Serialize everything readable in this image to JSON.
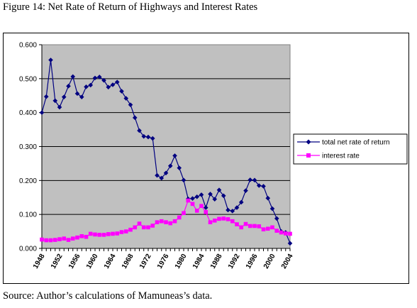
{
  "figure": {
    "title": "Figure 14:  Net Rate of Return of Highways and Interest Rates",
    "source": "Source:  Author’s calculations of Mamuneas’s data."
  },
  "chart_data": {
    "type": "line",
    "title": "",
    "xlabel": "",
    "ylabel": "",
    "ylim": [
      0,
      0.6
    ],
    "yticks": [
      "0.000",
      "0.100",
      "0.200",
      "0.300",
      "0.400",
      "0.500",
      "0.600"
    ],
    "xlim": [
      1948,
      2004
    ],
    "xticks": [
      "1948",
      "1952",
      "1956",
      "1960",
      "1964",
      "1968",
      "1972",
      "1976",
      "1980",
      "1984",
      "1988",
      "1992",
      "1996",
      "2000",
      "2004"
    ],
    "grid": true,
    "legend_position": "right",
    "x": [
      1948,
      1949,
      1950,
      1951,
      1952,
      1953,
      1954,
      1955,
      1956,
      1957,
      1958,
      1959,
      1960,
      1961,
      1962,
      1963,
      1964,
      1965,
      1966,
      1967,
      1968,
      1969,
      1970,
      1971,
      1972,
      1973,
      1974,
      1975,
      1976,
      1977,
      1978,
      1979,
      1980,
      1981,
      1982,
      1983,
      1984,
      1985,
      1986,
      1987,
      1988,
      1989,
      1990,
      1991,
      1992,
      1993,
      1994,
      1995,
      1996,
      1997,
      1998,
      1999,
      2000,
      2001,
      2002,
      2003,
      2004
    ],
    "series": [
      {
        "name": "total net rate of return",
        "color": "#000080",
        "marker": "diamond",
        "values": [
          0.4,
          0.447,
          0.555,
          0.435,
          0.416,
          0.446,
          0.478,
          0.506,
          0.456,
          0.446,
          0.476,
          0.481,
          0.502,
          0.505,
          0.495,
          0.475,
          0.482,
          0.49,
          0.463,
          0.442,
          0.423,
          0.385,
          0.347,
          0.33,
          0.328,
          0.324,
          0.215,
          0.207,
          0.222,
          0.243,
          0.273,
          0.237,
          0.201,
          0.146,
          0.147,
          0.152,
          0.158,
          0.12,
          0.16,
          0.145,
          0.172,
          0.155,
          0.113,
          0.11,
          0.12,
          0.136,
          0.17,
          0.202,
          0.201,
          0.185,
          0.183,
          0.148,
          0.117,
          0.088,
          0.05,
          0.047,
          0.015
        ]
      },
      {
        "name": "interest rate",
        "color": "#ff00ff",
        "marker": "square",
        "values": [
          0.026,
          0.024,
          0.024,
          0.025,
          0.027,
          0.029,
          0.025,
          0.029,
          0.032,
          0.036,
          0.034,
          0.043,
          0.041,
          0.04,
          0.04,
          0.042,
          0.043,
          0.044,
          0.048,
          0.05,
          0.055,
          0.062,
          0.073,
          0.062,
          0.062,
          0.067,
          0.077,
          0.08,
          0.077,
          0.074,
          0.08,
          0.091,
          0.104,
          0.141,
          0.131,
          0.111,
          0.125,
          0.107,
          0.077,
          0.082,
          0.087,
          0.088,
          0.086,
          0.08,
          0.071,
          0.062,
          0.072,
          0.066,
          0.066,
          0.065,
          0.056,
          0.058,
          0.062,
          0.052,
          0.047,
          0.044,
          0.043
        ]
      }
    ]
  }
}
